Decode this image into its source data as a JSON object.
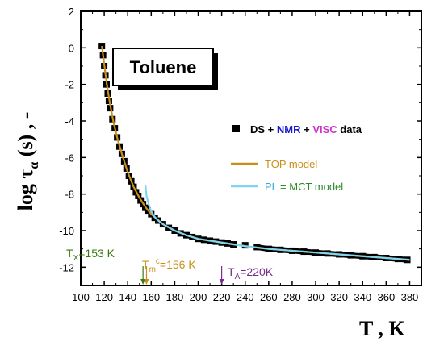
{
  "chart_data": {
    "type": "line",
    "title": "Toluene",
    "xlabel": "T , K",
    "ylabel_main": "log τ",
    "ylabel_sub": "α",
    "ylabel_tail": " (s) , -",
    "xlim": [
      100,
      390
    ],
    "ylim": [
      -13,
      2
    ],
    "x_ticks": [
      "100",
      "120",
      "140",
      "160",
      "180",
      "200",
      "220",
      "240",
      "260",
      "280",
      "300",
      "320",
      "340",
      "360",
      "380"
    ],
    "y_ticks": [
      "2",
      "0",
      "-2",
      "-4",
      "-6",
      "-8",
      "-10",
      "-12"
    ],
    "legend": {
      "data_label_parts": [
        "DS",
        " + ",
        "NMR",
        " + ",
        "VISC",
        " data"
      ],
      "data_label_colors": [
        "#000000",
        "#000000",
        "#1a1acc",
        "#000000",
        "#cc33cc",
        "#000000"
      ],
      "top_label": "TOP model",
      "pl_label_parts": [
        "PL",
        " = MCT model"
      ],
      "pl_label_colors": [
        "#33aadd",
        "#2a8a2a"
      ]
    },
    "annotations": {
      "tx": {
        "prefix": "T",
        "sub": "X",
        "suffix": "=153 K",
        "x": 153,
        "color": "#3a7a10"
      },
      "tm": {
        "prefix": "T",
        "sub": "m",
        "sup": "c",
        "suffix": "=156 K",
        "x": 156,
        "color": "#c8901a"
      },
      "ta": {
        "prefix": "T",
        "sub": "A",
        "suffix": "=220K",
        "x": 220,
        "color": "#7a2a8a"
      }
    },
    "series": [
      {
        "name": "DS + NMR + VISC data",
        "kind": "scatter",
        "color": "#000000",
        "points": [
          [
            118,
            0.1
          ],
          [
            119,
            -0.4
          ],
          [
            120,
            -1.0
          ],
          [
            121,
            -1.5
          ],
          [
            122,
            -2.0
          ],
          [
            123,
            -2.5
          ],
          [
            124,
            -2.9
          ],
          [
            125,
            -3.3
          ],
          [
            127,
            -3.9
          ],
          [
            129,
            -4.4
          ],
          [
            131,
            -4.9
          ],
          [
            133,
            -5.4
          ],
          [
            135,
            -5.8
          ],
          [
            137,
            -6.2
          ],
          [
            139,
            -6.6
          ],
          [
            141,
            -7.0
          ],
          [
            143,
            -7.3
          ],
          [
            145,
            -7.6
          ],
          [
            147,
            -7.9
          ],
          [
            149,
            -8.1
          ],
          [
            151,
            -8.35
          ],
          [
            153,
            -8.55
          ],
          [
            155,
            -8.75
          ],
          [
            157,
            -8.9
          ],
          [
            160,
            -9.1
          ],
          [
            163,
            -9.3
          ],
          [
            166,
            -9.45
          ],
          [
            170,
            -9.65
          ],
          [
            175,
            -9.85
          ],
          [
            180,
            -10.0
          ],
          [
            185,
            -10.15
          ],
          [
            190,
            -10.25
          ],
          [
            195,
            -10.35
          ],
          [
            200,
            -10.45
          ],
          [
            205,
            -10.5
          ],
          [
            210,
            -10.55
          ],
          [
            215,
            -10.6
          ],
          [
            220,
            -10.65
          ],
          [
            225,
            -10.7
          ],
          [
            230,
            -10.75
          ],
          [
            240,
            -10.8
          ],
          [
            250,
            -10.9
          ],
          [
            260,
            -11.0
          ],
          [
            270,
            -11.05
          ],
          [
            280,
            -11.1
          ],
          [
            290,
            -11.15
          ],
          [
            300,
            -11.2
          ],
          [
            310,
            -11.25
          ],
          [
            320,
            -11.3
          ],
          [
            330,
            -11.35
          ],
          [
            340,
            -11.4
          ],
          [
            350,
            -11.45
          ],
          [
            360,
            -11.5
          ],
          [
            370,
            -11.55
          ],
          [
            378,
            -11.6
          ]
        ]
      },
      {
        "name": "TOP model",
        "kind": "line",
        "color": "#c8901a",
        "points": [
          [
            118,
            0.1
          ],
          [
            120,
            -0.9
          ],
          [
            122,
            -1.9
          ],
          [
            125,
            -3.1
          ],
          [
            128,
            -4.1
          ],
          [
            131,
            -4.9
          ],
          [
            135,
            -5.8
          ],
          [
            140,
            -6.8
          ],
          [
            145,
            -7.6
          ],
          [
            150,
            -8.2
          ],
          [
            155,
            -8.7
          ],
          [
            160,
            -9.1
          ],
          [
            170,
            -9.65
          ],
          [
            180,
            -10.0
          ],
          [
            190,
            -10.25
          ],
          [
            200,
            -10.45
          ],
          [
            220,
            -10.65
          ],
          [
            240,
            -10.85
          ],
          [
            260,
            -11.0
          ],
          [
            280,
            -11.1
          ],
          [
            300,
            -11.2
          ],
          [
            320,
            -11.3
          ],
          [
            340,
            -11.4
          ],
          [
            360,
            -11.5
          ],
          [
            380,
            -11.6
          ]
        ]
      },
      {
        "name": "PL = MCT model",
        "kind": "line",
        "color": "#7fd4f0",
        "points": [
          [
            155,
            -7.5
          ],
          [
            156,
            -8.1
          ],
          [
            158,
            -8.6
          ],
          [
            160,
            -8.95
          ],
          [
            163,
            -9.25
          ],
          [
            166,
            -9.45
          ],
          [
            170,
            -9.65
          ],
          [
            180,
            -10.0
          ],
          [
            190,
            -10.25
          ],
          [
            200,
            -10.45
          ],
          [
            220,
            -10.65
          ],
          [
            240,
            -10.85
          ],
          [
            260,
            -11.0
          ],
          [
            280,
            -11.1
          ],
          [
            300,
            -11.2
          ],
          [
            320,
            -11.3
          ],
          [
            340,
            -11.4
          ],
          [
            360,
            -11.5
          ],
          [
            380,
            -11.6
          ]
        ]
      }
    ]
  }
}
